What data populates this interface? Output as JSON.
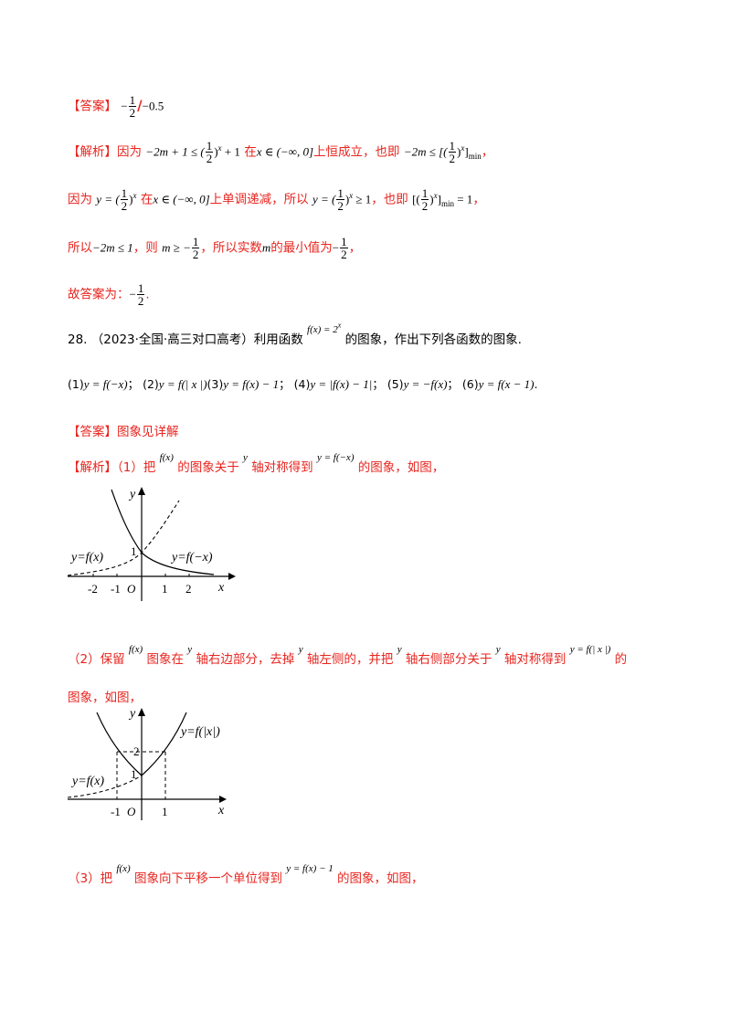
{
  "answer1": {
    "tag": "【答案】",
    "value_a": "−",
    "frac_num": "1",
    "frac_den": "2",
    "slash": "/",
    "value_b": "−0.5"
  },
  "analysis1": {
    "tag": "【解析】",
    "line1": {
      "t1": "因为",
      "m1a": "−2m + 1 ≤ (",
      "m1f_n": "1",
      "m1f_d": "2",
      "m1b": ")",
      "m1sup": "x",
      "m1c": " + 1",
      "t2": "在",
      "m2": "x ∈ (−∞, 0]",
      "t3": "上恒成立，也即",
      "m3a": "−2m ≤ [(",
      "m3f_n": "1",
      "m3f_d": "2",
      "m3b": ")",
      "m3sup": "x",
      "m3c": "]",
      "m3sub": "min",
      "t4": "，"
    },
    "line2": {
      "t1": "因为",
      "m1a": "y = (",
      "m1f_n": "1",
      "m1f_d": "2",
      "m1b": ")",
      "m1sup": "x",
      "t2": "在",
      "m2": "x ∈ (−∞, 0]",
      "t3": "上单调递减，所以",
      "m3a": "y = (",
      "m3f_n": "1",
      "m3f_d": "2",
      "m3b": ")",
      "m3sup": "x",
      "m3c": " ≥ 1",
      "t4": "，也即",
      "m4a": "[(",
      "m4f_n": "1",
      "m4f_d": "2",
      "m4b": ")",
      "m4sup": "x",
      "m4c": "]",
      "m4sub": "min",
      "m4d": " = 1",
      "t5": "，"
    },
    "line3": {
      "t1": "所以",
      "m1": "−2m ≤ 1",
      "t2": "，则",
      "m2a": "m ≥ −",
      "m2f_n": "1",
      "m2f_d": "2",
      "t3": "，所以实数",
      "m3": "m",
      "t4": "的最小值为",
      "m4a": "−",
      "m4f_n": "1",
      "m4f_d": "2",
      "t5": "，"
    },
    "line4": {
      "t1": "故答案为：",
      "m1a": "−",
      "m1f_n": "1",
      "m1f_d": "2",
      "t2": "."
    }
  },
  "q28": {
    "num": "28.",
    "source": "（2023·全国·高三对口高考）",
    "t1": "利用函数",
    "func": "f(x) = 2",
    "func_sup": "x",
    "t2": "的图象，作出下列各函数的图象.",
    "items": [
      {
        "label": "(1)",
        "expr": "y = f(−x)",
        "sep": "；"
      },
      {
        "label": "(2)",
        "expr": "y = f(| x |)",
        "sep": ""
      },
      {
        "label": "(3)",
        "expr": "y = f(x) − 1",
        "sep": "；"
      },
      {
        "label": "(4)",
        "expr": "y = |f(x) − 1|",
        "sep": "；"
      },
      {
        "label": "(5)",
        "expr": "y = −f(x)",
        "sep": "；"
      },
      {
        "label": "(6)",
        "expr": "y = f(x − 1)",
        "sep": "."
      }
    ]
  },
  "answer2": {
    "tag": "【答案】",
    "text": "图象见详解"
  },
  "analysis2": {
    "tag": "【解析】",
    "p1": {
      "t1": "（1）把",
      "m1": "f(x)",
      "t2": "的图象关于",
      "m2": "y",
      "t3": "轴对称得到",
      "m3": "y = f(−x)",
      "t4": "的图象，如图，"
    },
    "p2": {
      "t1": "（2）保留",
      "m1": "f(x)",
      "t2": "图象在",
      "m2": "y",
      "t3": "轴右边部分，去掉",
      "m3": "y",
      "t4": "轴左侧的，并把",
      "m4": "y",
      "t5": "轴右侧部分关于",
      "m5": "y",
      "t6": "轴对称得到",
      "m6": "y = f(| x |)",
      "t7": "的",
      "t8": "图象，如图，"
    },
    "p3": {
      "t1": "（3）把",
      "m1": "f(x)",
      "t2": "图象向下平移一个单位得到",
      "m2": "y = f(x) − 1",
      "t3": "的图象，如图，"
    }
  },
  "graph1": {
    "axis_y": "y",
    "axis_x": "x",
    "origin": "O",
    "ticks": [
      "-2",
      "-1",
      "1",
      "2"
    ],
    "tick_y": "1",
    "label_left": "y=f(x)",
    "label_right": "y=f(−x)"
  },
  "graph2": {
    "axis_y": "y",
    "axis_x": "x",
    "origin": "O",
    "ticks": [
      "-1",
      "1"
    ],
    "tick_y1": "1",
    "tick_y2": "2",
    "label_left": "y=f(x)",
    "label_right": "y=f(|x|)"
  }
}
